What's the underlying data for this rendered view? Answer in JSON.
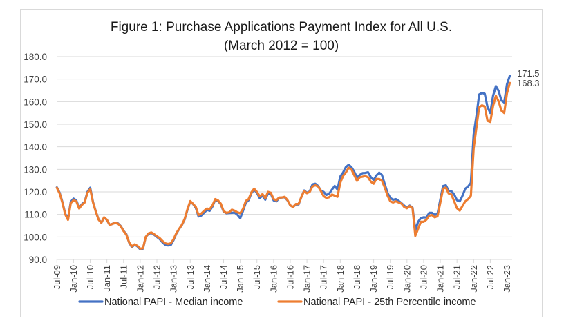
{
  "chart_data": {
    "type": "line",
    "title": "Figure 1: Purchase Applications Payment Index for All U.S.",
    "subtitle": "(March 2012 = 100)",
    "xlabel": "",
    "ylabel": "",
    "ylim": [
      90,
      180
    ],
    "yticks": [
      "90.0",
      "100.0",
      "110.0",
      "120.0",
      "130.0",
      "140.0",
      "150.0",
      "160.0",
      "170.0",
      "180.0"
    ],
    "ytick_values": [
      90,
      100,
      110,
      120,
      130,
      140,
      150,
      160,
      170,
      180
    ],
    "x_start": "Jul-09",
    "x_frequency": "monthly",
    "xtick_labels": [
      "Jul-09",
      "Jan-10",
      "Jul-10",
      "Jan-11",
      "Jul-11",
      "Jan-12",
      "Jul-12",
      "Jan-13",
      "Jul-13",
      "Jan-14",
      "Jul-14",
      "Jan-15",
      "Jul-15",
      "Jan-16",
      "Jul-16",
      "Jan-17",
      "Jul-17",
      "Jan-18",
      "Jul-18",
      "Jan-19",
      "Jul-19",
      "Jan-20",
      "Jul-20",
      "Jan-21",
      "Jul-21",
      "Jan-22",
      "Jul-22",
      "Jan-23"
    ],
    "xtick_interval_months": 6,
    "grid": true,
    "legend_position": "bottom",
    "series": [
      {
        "name": "National PAPI - Median income",
        "color": "#4472C4",
        "end_label": "171.5",
        "values": [
          122.0,
          119.6,
          115.5,
          110.3,
          108.0,
          115.6,
          117.0,
          116.2,
          113.0,
          114.5,
          115.6,
          120.0,
          121.8,
          115.5,
          111.3,
          107.8,
          106.3,
          108.6,
          107.5,
          105.3,
          105.8,
          106.3,
          106.0,
          104.8,
          102.7,
          101.2,
          97.5,
          95.5,
          96.6,
          95.8,
          94.5,
          94.8,
          100.0,
          101.4,
          101.8,
          101.0,
          100.0,
          99.1,
          97.6,
          96.5,
          96.2,
          96.4,
          98.6,
          101.5,
          103.5,
          105.3,
          107.8,
          112.0,
          115.7,
          114.6,
          112.9,
          109.1,
          109.5,
          110.8,
          112.0,
          111.6,
          113.5,
          116.5,
          116.0,
          114.5,
          111.3,
          110.5,
          110.6,
          110.7,
          110.8,
          109.8,
          108.3,
          111.6,
          115.2,
          116.3,
          119.4,
          121.0,
          119.6,
          117.2,
          118.3,
          116.5,
          119.4,
          119.2,
          116.2,
          115.8,
          117.3,
          117.5,
          117.6,
          116.2,
          114.0,
          113.3,
          114.4,
          114.4,
          117.8,
          120.6,
          119.6,
          120.2,
          123.3,
          123.6,
          122.6,
          120.6,
          120.0,
          118.6,
          119.2,
          121.0,
          122.6,
          121.0,
          126.8,
          128.6,
          131.0,
          132.0,
          131.0,
          129.0,
          126.4,
          127.5,
          128.3,
          128.4,
          128.7,
          126.5,
          125.3,
          127.3,
          128.5,
          127.5,
          123.4,
          119.5,
          117.3,
          116.5,
          116.8,
          116.0,
          115.0,
          113.9,
          112.8,
          113.9,
          113.0,
          103.0,
          106.7,
          108.4,
          108.7,
          108.6,
          110.7,
          110.7,
          109.8,
          110.2,
          116.6,
          122.6,
          122.9,
          120.5,
          120.3,
          118.8,
          116.3,
          115.8,
          118.3,
          121.4,
          122.4,
          124.0,
          145.4,
          153.6,
          163.2,
          163.9,
          163.5,
          157.6,
          155.0,
          162.6,
          166.9,
          164.7,
          160.6,
          159.6,
          167.7,
          171.5
        ]
      },
      {
        "name": "National PAPI - 25th Percentile income",
        "color": "#ED7D31",
        "end_label": "168.3",
        "values": [
          121.8,
          119.3,
          115.2,
          110.0,
          107.6,
          115.0,
          116.3,
          115.8,
          112.6,
          114.2,
          115.3,
          119.6,
          121.2,
          115.3,
          111.2,
          107.7,
          106.3,
          108.7,
          107.6,
          105.3,
          105.8,
          106.2,
          105.9,
          104.7,
          102.6,
          101.0,
          97.6,
          95.8,
          96.7,
          96.0,
          94.8,
          95.0,
          100.0,
          101.6,
          102.0,
          101.2,
          100.3,
          99.5,
          98.2,
          97.2,
          96.9,
          97.2,
          99.0,
          101.7,
          103.6,
          105.4,
          108.0,
          112.3,
          115.9,
          114.7,
          113.3,
          109.7,
          110.4,
          111.6,
          112.6,
          112.3,
          114.0,
          116.8,
          116.2,
          114.8,
          111.5,
          110.7,
          110.9,
          112.1,
          111.6,
          110.9,
          110.5,
          112.4,
          116.0,
          116.8,
          119.8,
          121.4,
          120.0,
          118.0,
          119.0,
          117.2,
          120.0,
          119.6,
          116.8,
          116.3,
          117.5,
          117.5,
          117.8,
          116.3,
          114.0,
          113.3,
          114.6,
          114.6,
          117.8,
          120.4,
          119.4,
          120.0,
          122.4,
          122.9,
          122.4,
          120.4,
          118.1,
          117.3,
          117.6,
          118.8,
          118.3,
          117.8,
          124.0,
          127.1,
          128.6,
          130.7,
          130.0,
          127.5,
          124.9,
          126.5,
          126.7,
          127.0,
          126.5,
          124.5,
          123.6,
          125.7,
          125.7,
          124.9,
          121.9,
          118.3,
          115.8,
          115.3,
          115.8,
          115.3,
          114.8,
          113.3,
          112.7,
          113.7,
          112.7,
          100.5,
          103.6,
          106.7,
          106.7,
          107.7,
          109.4,
          109.7,
          108.7,
          109.2,
          115.3,
          121.4,
          121.9,
          119.3,
          118.8,
          115.8,
          112.7,
          111.7,
          113.8,
          115.8,
          116.8,
          118.3,
          139.3,
          148.5,
          157.6,
          158.4,
          157.8,
          151.5,
          151.0,
          158.1,
          162.6,
          160.1,
          156.0,
          155.0,
          163.7,
          168.3
        ]
      }
    ]
  }
}
